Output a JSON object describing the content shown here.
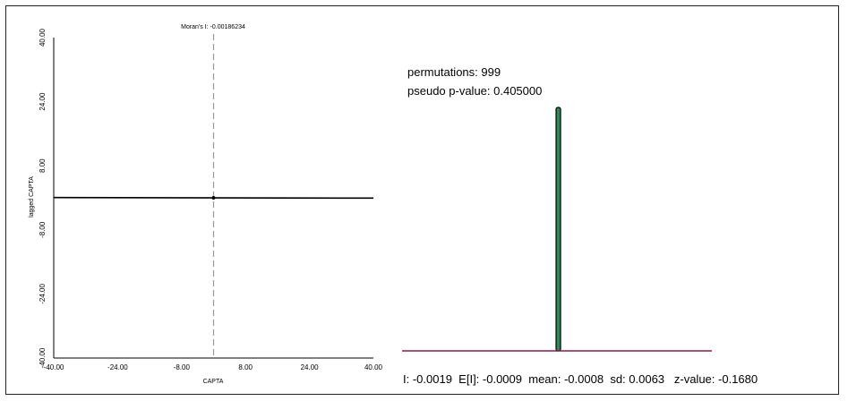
{
  "chart_data": [
    {
      "type": "scatter",
      "title": "Moran's I: -0.00186234",
      "xlabel": "CAPTA",
      "ylabel": "lagged CAPTA",
      "xlim": [
        -40,
        40
      ],
      "ylim": [
        -40,
        40
      ],
      "x_ticks": [
        "-40.00",
        "-24.00",
        "-8.00",
        "8.00",
        "24.00",
        "40.00"
      ],
      "y_ticks": [
        "-40.00",
        "-24.00",
        "-8.00",
        "8.00",
        "24.00",
        "40.00"
      ],
      "x_tick_values": [
        -40,
        -24,
        -8,
        8,
        24,
        40
      ],
      "y_tick_values": [
        -40,
        -24,
        -8,
        8,
        24,
        40
      ],
      "points": [
        {
          "x": 0,
          "y": 0
        }
      ],
      "regression": {
        "slope": -0.00186234,
        "intercept": 0
      },
      "mean_x": 0,
      "grid": false
    },
    {
      "type": "bar",
      "title": "",
      "permutations_text": "permutations: 999",
      "pvalue_text": "pseudo p-value: 0.405000",
      "bar_fraction": 1.0,
      "stats": {
        "I": "I: -0.0019",
        "EI": "E[I]: -0.0009",
        "mean": "mean: -0.0008",
        "sd": "sd: 0.0063",
        "z": "z-value: -0.1680"
      },
      "colors": {
        "bar_fill": "#2e8b57",
        "baseline": "#8b1a4a"
      }
    }
  ]
}
